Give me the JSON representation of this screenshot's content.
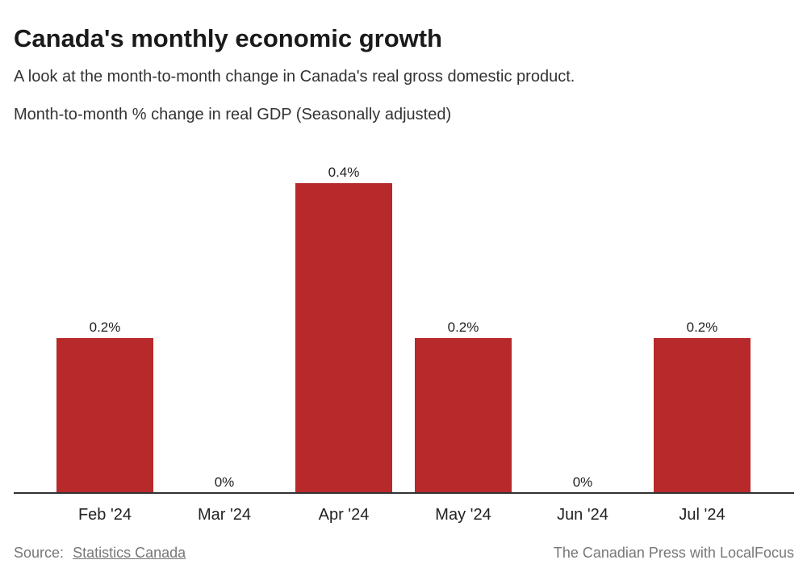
{
  "title": "Canada's monthly economic growth",
  "subtitle": "A look at the month-to-month change in Canada's real gross domestic product.",
  "source_label": "Source:",
  "source_link": "Statistics Canada",
  "credit": "The Canadian Press with LocalFocus",
  "colors": {
    "bar": "#b8292b",
    "axis": "#333333"
  },
  "chart_data": {
    "type": "bar",
    "title": "Canada's monthly economic growth",
    "ylabel": "Month-to-month % change in real GDP (Seasonally adjusted)",
    "xlabel": "",
    "categories": [
      "Feb '24",
      "Mar '24",
      "Apr '24",
      "May '24",
      "Jun '24",
      "Jul '24"
    ],
    "values": [
      0.2,
      0,
      0.4,
      0.2,
      0,
      0.2
    ],
    "data_labels": [
      "0.2%",
      "0%",
      "0.4%",
      "0.2%",
      "0%",
      "0.2%"
    ],
    "ylim": [
      0,
      0.4
    ],
    "grid": false
  }
}
